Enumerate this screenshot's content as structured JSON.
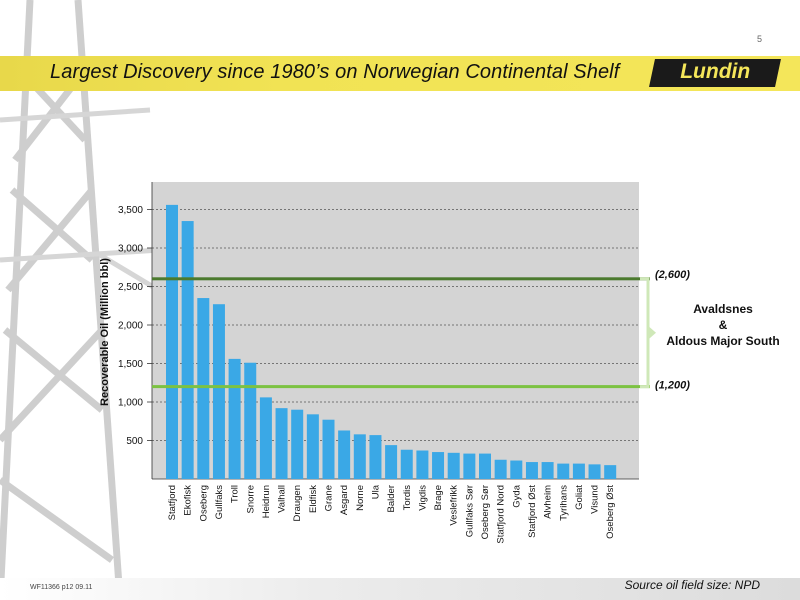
{
  "page": {
    "number": "5",
    "title": "Largest Discovery since 1980’s on Norwegian Continental Shelf",
    "logo_text": "Lundin",
    "footer_code": "WF11366 p12 09.11",
    "source": "Source oil field size: NPD",
    "colors": {
      "banner": "#f1e354",
      "bar": "#3aa8e6",
      "plot_bg": "#d4d4d4",
      "upper_line": "#4b7a2e",
      "lower_line": "#7cc242"
    }
  },
  "chart_data": {
    "type": "bar",
    "ylabel": "Recoverable Oil  (Million bbl)",
    "ylim": [
      0,
      3800
    ],
    "ytick_values": [
      500,
      1000,
      1500,
      2000,
      2500,
      3000,
      3500
    ],
    "ytick_labels": [
      "500",
      "1,000",
      "1,500",
      "2,000",
      "2,500",
      "3,000",
      "3,500"
    ],
    "grid": "horizontal dashed",
    "categories": [
      "Statfjord",
      "Ekofisk",
      "Oseberg",
      "Gullfaks",
      "Troll",
      "Snorre",
      "Heidrun",
      "Valhall",
      "Draugen",
      "Eldfisk",
      "Grane",
      "Asgard",
      "Norne",
      "Ula",
      "Balder",
      "Tordis",
      "Vigdis",
      "Brage",
      "Veslefrikk",
      "Gullfaks Sør",
      "Oseberg Sør",
      "Statfjord Nord",
      "Gyda",
      "Statfjord Øst",
      "Alvheim",
      "Tyrihans",
      "Goliat",
      "Visund",
      "Oseberg Øst"
    ],
    "values": [
      3560,
      3350,
      2350,
      2270,
      1560,
      1510,
      1060,
      920,
      900,
      840,
      770,
      630,
      580,
      570,
      440,
      380,
      370,
      350,
      340,
      330,
      330,
      250,
      240,
      220,
      220,
      200,
      200,
      190,
      180
    ],
    "reference_lines": [
      {
        "value": 2600,
        "label": "(2,600)"
      },
      {
        "value": 1200,
        "label": "(1,200)"
      }
    ],
    "annotation": {
      "lines": [
        "Avaldsnes",
        "&",
        "Aldous Major South"
      ]
    }
  }
}
